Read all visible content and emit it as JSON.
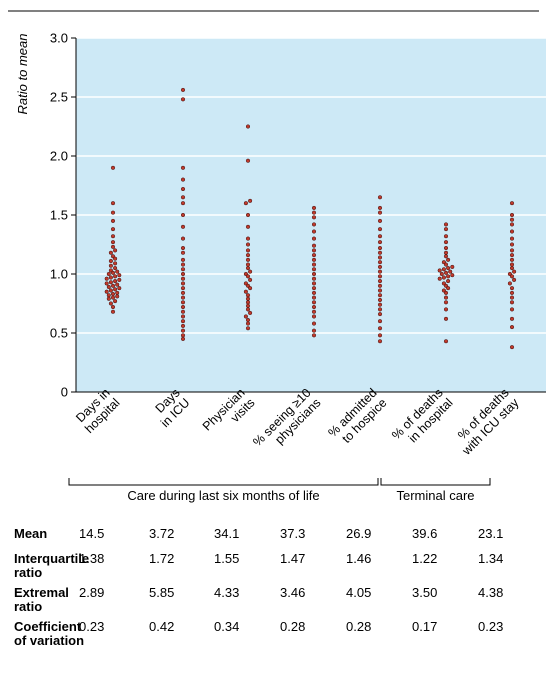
{
  "chart_data": {
    "type": "scatter",
    "ylabel": "Ratio to mean",
    "ylim": [
      0,
      3.0
    ],
    "yticks": [
      "0",
      "0.5",
      "1.0",
      "1.5",
      "2.0",
      "2.5",
      "3.0"
    ],
    "grid": true,
    "background_color": "#cde9f6",
    "point_color": "#c0392b",
    "categories": [
      [
        "Days in",
        "hospital"
      ],
      [
        "Days",
        "in ICU"
      ],
      [
        "Physician",
        "visits"
      ],
      [
        "% seeing ≥10",
        "physicians"
      ],
      [
        "% admitted",
        "to hospice"
      ],
      [
        "% of deaths",
        "in hospital"
      ],
      [
        "% of deaths",
        "with ICU stay"
      ]
    ],
    "groups": [
      {
        "label": "Care during last six months of life",
        "from": 0,
        "to": 4
      },
      {
        "label": "Terminal care",
        "from": 4,
        "to": 6
      }
    ],
    "series": [
      {
        "values": [
          0.68,
          0.72,
          0.75,
          0.77,
          0.79,
          0.8,
          0.81,
          0.82,
          0.83,
          0.84,
          0.85,
          0.86,
          0.87,
          0.88,
          0.89,
          0.9,
          0.91,
          0.92,
          0.93,
          0.94,
          0.95,
          0.96,
          0.97,
          0.98,
          0.99,
          1.0,
          1.01,
          1.02,
          1.03,
          1.05,
          1.07,
          1.09,
          1.11,
          1.13,
          1.15,
          1.18,
          1.2,
          1.23,
          1.27,
          1.32,
          1.38,
          1.45,
          1.52,
          1.6,
          1.9
        ]
      },
      {
        "values": [
          0.45,
          0.48,
          0.52,
          0.56,
          0.6,
          0.64,
          0.68,
          0.72,
          0.76,
          0.8,
          0.84,
          0.88,
          0.92,
          0.96,
          1.0,
          1.04,
          1.08,
          1.12,
          1.18,
          1.22,
          1.3,
          1.4,
          1.5,
          1.6,
          1.65,
          1.72,
          1.8,
          1.9,
          2.48,
          2.56
        ]
      },
      {
        "values": [
          0.54,
          0.58,
          0.61,
          0.64,
          0.67,
          0.7,
          0.73,
          0.76,
          0.79,
          0.82,
          0.85,
          0.88,
          0.9,
          0.92,
          0.95,
          0.98,
          1.0,
          1.02,
          1.05,
          1.08,
          1.12,
          1.16,
          1.2,
          1.25,
          1.3,
          1.4,
          1.5,
          1.6,
          1.62,
          1.96,
          2.25
        ]
      },
      {
        "values": [
          0.48,
          0.52,
          0.58,
          0.64,
          0.68,
          0.72,
          0.76,
          0.8,
          0.84,
          0.88,
          0.92,
          0.96,
          1.0,
          1.04,
          1.08,
          1.12,
          1.16,
          1.2,
          1.24,
          1.3,
          1.36,
          1.42,
          1.48,
          1.52,
          1.56
        ]
      },
      {
        "values": [
          0.43,
          0.48,
          0.54,
          0.6,
          0.66,
          0.7,
          0.74,
          0.78,
          0.82,
          0.86,
          0.9,
          0.94,
          0.98,
          1.02,
          1.06,
          1.1,
          1.14,
          1.18,
          1.22,
          1.27,
          1.32,
          1.38,
          1.45,
          1.52,
          1.56,
          1.65
        ]
      },
      {
        "values": [
          0.43,
          0.62,
          0.7,
          0.76,
          0.8,
          0.84,
          0.86,
          0.88,
          0.9,
          0.92,
          0.94,
          0.96,
          0.97,
          0.98,
          0.99,
          1.0,
          1.01,
          1.02,
          1.03,
          1.04,
          1.05,
          1.06,
          1.08,
          1.1,
          1.12,
          1.15,
          1.18,
          1.22,
          1.27,
          1.32,
          1.38,
          1.42
        ]
      },
      {
        "values": [
          0.38,
          0.55,
          0.62,
          0.7,
          0.76,
          0.8,
          0.84,
          0.88,
          0.92,
          0.95,
          0.98,
          1.0,
          1.02,
          1.05,
          1.08,
          1.12,
          1.16,
          1.2,
          1.25,
          1.3,
          1.36,
          1.42,
          1.46,
          1.5,
          1.6
        ]
      }
    ]
  },
  "stats": {
    "rows": [
      {
        "label": "Mean",
        "values": [
          "14.5",
          "3.72",
          "34.1",
          "37.3",
          "26.9",
          "39.6",
          "23.1"
        ]
      },
      {
        "label": "Interquartile ratio",
        "values": [
          "1.38",
          "1.72",
          "1.55",
          "1.47",
          "1.46",
          "1.22",
          "1.34"
        ]
      },
      {
        "label": "Extremal ratio",
        "values": [
          "2.89",
          "5.85",
          "4.33",
          "3.46",
          "4.05",
          "3.50",
          "4.38"
        ]
      },
      {
        "label": "Coefficient of variation",
        "values": [
          "0.23",
          "0.42",
          "0.34",
          "0.28",
          "0.28",
          "0.17",
          "0.23"
        ]
      }
    ]
  }
}
